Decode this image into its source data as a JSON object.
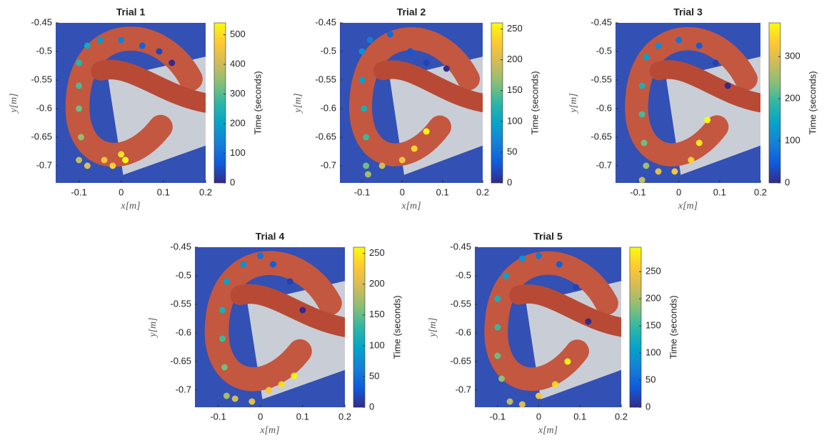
{
  "chart_data": [
    {
      "type": "scatter",
      "title": "Trial 1",
      "xlabel": "x[m]",
      "ylabel": "y[m]",
      "clabel": "Time (seconds)",
      "xlim": [
        -0.155,
        0.2
      ],
      "ylim": [
        -0.73,
        -0.45
      ],
      "xticks": [
        -0.1,
        0,
        0.1,
        0.2
      ],
      "yticks": [
        -0.45,
        -0.5,
        -0.55,
        -0.6,
        -0.65,
        -0.7
      ],
      "clim": [
        0,
        540
      ],
      "cticks": [
        0,
        100,
        200,
        300,
        400,
        500
      ],
      "colormap": [
        "#352a87",
        "#0f5cdd",
        "#1481d6",
        "#06a4ca",
        "#2eb7a4",
        "#87bf77",
        "#d1bb59",
        "#fec832",
        "#f9fb0e"
      ],
      "x": [
        0.12,
        0.09,
        0.05,
        0,
        -0.05,
        -0.08,
        -0.1,
        -0.1,
        -0.1,
        -0.095,
        -0.1,
        -0.08,
        -0.04,
        -0.02,
        0,
        0.01
      ],
      "y": [
        -0.52,
        -0.5,
        -0.49,
        -0.48,
        -0.48,
        -0.49,
        -0.52,
        -0.56,
        -0.6,
        -0.65,
        -0.69,
        -0.7,
        -0.69,
        -0.7,
        -0.68,
        -0.69
      ],
      "values": [
        0,
        40,
        80,
        130,
        180,
        220,
        260,
        290,
        320,
        350,
        390,
        420,
        450,
        480,
        510,
        540
      ]
    },
    {
      "type": "scatter",
      "title": "Trial 2",
      "xlabel": "x[m]",
      "ylabel": "y[m]",
      "clabel": "Time (seconds)",
      "xlim": [
        -0.155,
        0.2
      ],
      "ylim": [
        -0.73,
        -0.45
      ],
      "xticks": [
        -0.1,
        0,
        0.1,
        0.2
      ],
      "yticks": [
        -0.45,
        -0.5,
        -0.55,
        -0.6,
        -0.65,
        -0.7
      ],
      "clim": [
        0,
        260
      ],
      "cticks": [
        0,
        50,
        100,
        150,
        200,
        250
      ],
      "colormap": [
        "#352a87",
        "#0f5cdd",
        "#1481d6",
        "#06a4ca",
        "#2eb7a4",
        "#87bf77",
        "#d1bb59",
        "#fec832",
        "#f9fb0e"
      ],
      "x": [
        0.11,
        0.06,
        0.02,
        -0.03,
        -0.08,
        -0.1,
        -0.1,
        -0.095,
        -0.09,
        -0.09,
        -0.085,
        -0.05,
        0,
        0.03,
        0.06
      ],
      "y": [
        -0.53,
        -0.52,
        -0.5,
        -0.47,
        -0.48,
        -0.5,
        -0.55,
        -0.6,
        -0.65,
        -0.7,
        -0.715,
        -0.7,
        -0.69,
        -0.67,
        -0.64
      ],
      "values": [
        0,
        15,
        30,
        45,
        60,
        75,
        95,
        115,
        135,
        155,
        175,
        195,
        215,
        235,
        255
      ]
    },
    {
      "type": "scatter",
      "title": "Trial 3",
      "xlabel": "x[m]",
      "ylabel": "y[m]",
      "clabel": "Time (seconds)",
      "xlim": [
        -0.155,
        0.2
      ],
      "ylim": [
        -0.73,
        -0.45
      ],
      "xticks": [
        -0.1,
        0,
        0.1,
        0.2
      ],
      "yticks": [
        -0.45,
        -0.5,
        -0.55,
        -0.6,
        -0.65,
        -0.7
      ],
      "clim": [
        0,
        380
      ],
      "cticks": [
        0,
        100,
        200,
        300
      ],
      "colormap": [
        "#352a87",
        "#0f5cdd",
        "#1481d6",
        "#06a4ca",
        "#2eb7a4",
        "#87bf77",
        "#d1bb59",
        "#fec832",
        "#f9fb0e"
      ],
      "x": [
        0.12,
        0.09,
        0.05,
        0,
        -0.05,
        -0.08,
        -0.09,
        -0.09,
        -0.085,
        -0.08,
        -0.09,
        -0.05,
        -0.01,
        0.03,
        0.05,
        0.07
      ],
      "y": [
        -0.56,
        -0.52,
        -0.49,
        -0.48,
        -0.49,
        -0.51,
        -0.56,
        -0.61,
        -0.66,
        -0.7,
        -0.725,
        -0.71,
        -0.71,
        -0.69,
        -0.66,
        -0.62
      ],
      "values": [
        0,
        25,
        50,
        80,
        110,
        140,
        170,
        200,
        225,
        250,
        275,
        300,
        320,
        340,
        360,
        380
      ]
    },
    {
      "type": "scatter",
      "title": "Trial 4",
      "xlabel": "x[m]",
      "ylabel": "y[m]",
      "clabel": "Time (seconds)",
      "xlim": [
        -0.155,
        0.2
      ],
      "ylim": [
        -0.73,
        -0.45
      ],
      "xticks": [
        -0.1,
        0,
        0.1,
        0.2
      ],
      "yticks": [
        -0.45,
        -0.5,
        -0.55,
        -0.6,
        -0.65,
        -0.7
      ],
      "clim": [
        0,
        260
      ],
      "cticks": [
        0,
        50,
        100,
        150,
        200,
        250
      ],
      "colormap": [
        "#352a87",
        "#0f5cdd",
        "#1481d6",
        "#06a4ca",
        "#2eb7a4",
        "#87bf77",
        "#d1bb59",
        "#fec832",
        "#f9fb0e"
      ],
      "x": [
        0.1,
        0.07,
        0.03,
        0,
        -0.04,
        -0.08,
        -0.09,
        -0.09,
        -0.085,
        -0.08,
        -0.06,
        -0.02,
        0.02,
        0.05,
        0.08
      ],
      "y": [
        -0.56,
        -0.51,
        -0.48,
        -0.465,
        -0.48,
        -0.51,
        -0.56,
        -0.61,
        -0.66,
        -0.71,
        -0.715,
        -0.72,
        -0.7,
        -0.69,
        -0.675
      ],
      "values": [
        0,
        15,
        35,
        55,
        75,
        95,
        115,
        135,
        155,
        175,
        195,
        210,
        225,
        240,
        255
      ]
    },
    {
      "type": "scatter",
      "title": "Trial 5",
      "xlabel": "x[m]",
      "ylabel": "y[m]",
      "clabel": "Time (seconds)",
      "xlim": [
        -0.155,
        0.2
      ],
      "ylim": [
        -0.73,
        -0.45
      ],
      "xticks": [
        -0.1,
        0,
        0.1,
        0.2
      ],
      "yticks": [
        -0.45,
        -0.5,
        -0.55,
        -0.6,
        -0.65,
        -0.7
      ],
      "clim": [
        0,
        295
      ],
      "cticks": [
        0,
        50,
        100,
        150,
        200,
        250
      ],
      "colormap": [
        "#352a87",
        "#0f5cdd",
        "#1481d6",
        "#06a4ca",
        "#2eb7a4",
        "#87bf77",
        "#d1bb59",
        "#fec832",
        "#f9fb0e"
      ],
      "x": [
        0.12,
        0.09,
        0.05,
        0,
        -0.04,
        -0.08,
        -0.1,
        -0.1,
        -0.1,
        -0.09,
        -0.07,
        -0.04,
        0,
        0.04,
        0.07
      ],
      "y": [
        -0.58,
        -0.52,
        -0.48,
        -0.465,
        -0.47,
        -0.5,
        -0.54,
        -0.59,
        -0.64,
        -0.68,
        -0.72,
        -0.725,
        -0.71,
        -0.69,
        -0.65
      ],
      "values": [
        0,
        20,
        40,
        65,
        90,
        110,
        130,
        150,
        170,
        190,
        210,
        230,
        250,
        270,
        290
      ]
    }
  ]
}
